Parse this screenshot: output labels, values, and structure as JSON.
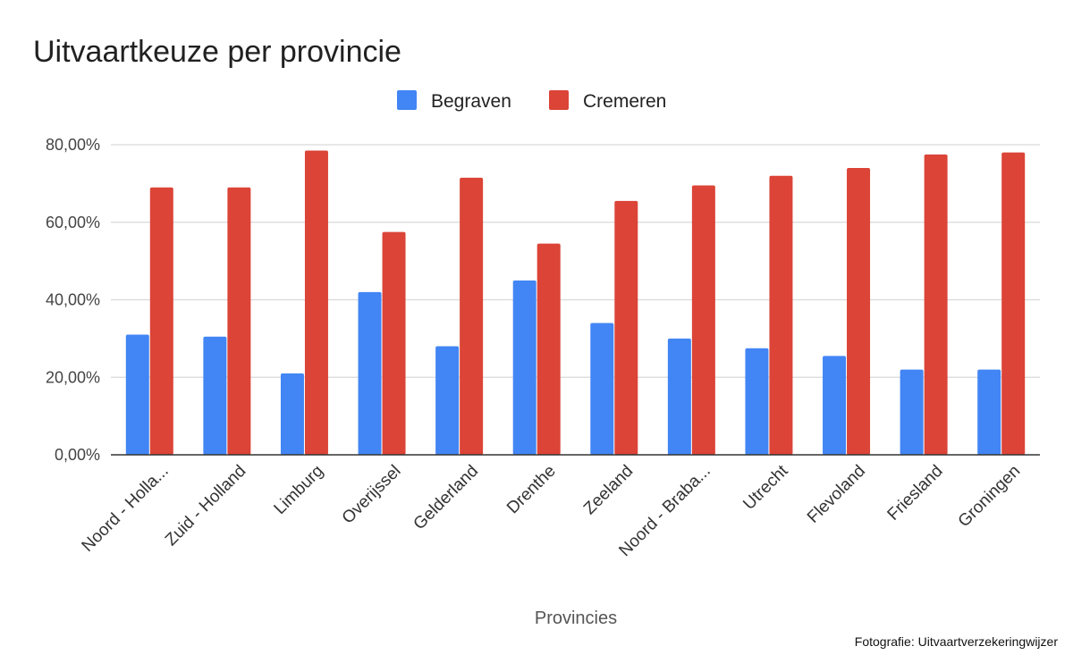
{
  "chart_data": {
    "type": "bar",
    "title": "Uitvaartkeuze per provincie",
    "xlabel": "Provincies",
    "ylabel": "",
    "categories": [
      "Noord - Holla...",
      "Zuid - Holland",
      "Limburg",
      "Overijssel",
      "Gelderland",
      "Drenthe",
      "Zeeland",
      "Noord - Braba...",
      "Utrecht",
      "Flevoland",
      "Friesland",
      "Groningen"
    ],
    "series": [
      {
        "name": "Begraven",
        "color": "#4285f4",
        "values": [
          31,
          30.5,
          21,
          42,
          28,
          45,
          34,
          30,
          27.5,
          25.5,
          22,
          22
        ]
      },
      {
        "name": "Cremeren",
        "color": "#db4437",
        "values": [
          69,
          69,
          78.5,
          57.5,
          71.5,
          54.5,
          65.5,
          69.5,
          72,
          74,
          77.5,
          78
        ]
      }
    ],
    "ylim": [
      0,
      80
    ],
    "yticks": [
      "0,00%",
      "20,00%",
      "40,00%",
      "60,00%",
      "80,00%"
    ],
    "ytick_values": [
      0,
      20,
      40,
      60,
      80
    ],
    "grid": true,
    "legend_position": "top-center"
  },
  "credit": "Fotografie: Uitvaartverzekeringwijzer"
}
